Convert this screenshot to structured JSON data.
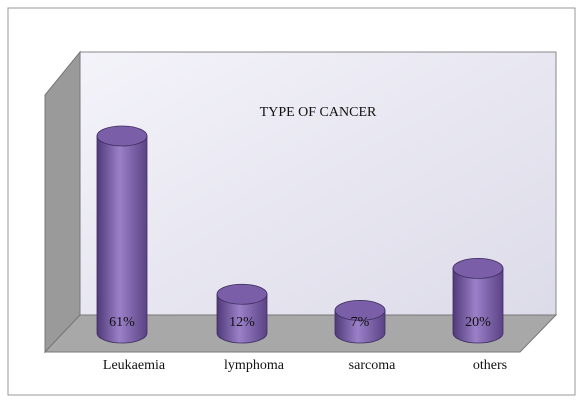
{
  "chart_data": {
    "type": "bar",
    "title": "TYPE OF CANCER",
    "categories": [
      "Leukaemia",
      "lymphoma",
      "sarcoma",
      "others"
    ],
    "values": [
      61,
      12,
      7,
      20
    ],
    "value_labels": [
      "61%",
      "12%",
      "7%",
      "20%"
    ],
    "color": "#7b5ea8"
  }
}
